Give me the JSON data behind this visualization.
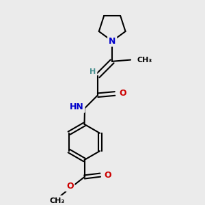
{
  "background_color": "#ebebeb",
  "atom_colors": {
    "C": "#000000",
    "N": "#0000cc",
    "O": "#cc0000",
    "H": "#4a9090"
  },
  "bond_color": "#000000",
  "bond_lw": 1.5,
  "figsize": [
    3.0,
    3.0
  ],
  "dpi": 100,
  "xlim": [
    0,
    10
  ],
  "ylim": [
    0,
    10
  ]
}
